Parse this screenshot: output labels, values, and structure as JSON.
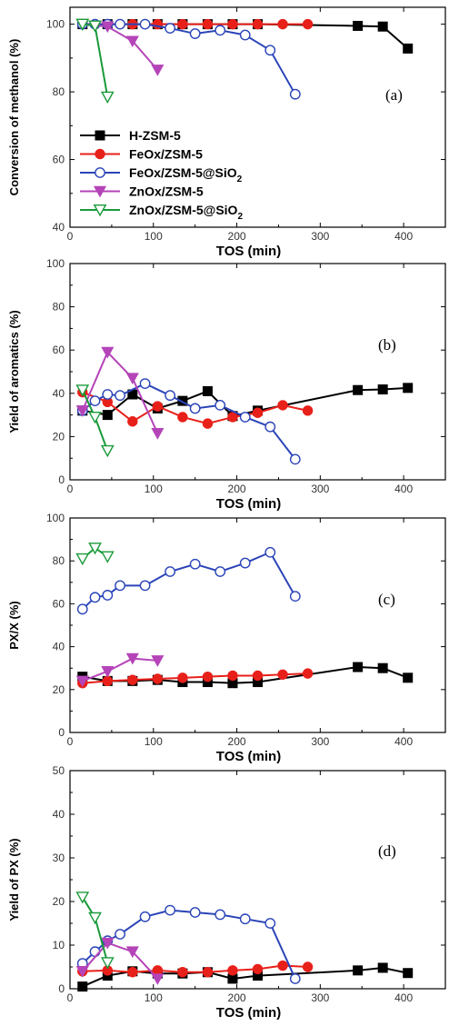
{
  "chart_data": [
    {
      "type": "line",
      "panel": "(a)",
      "xlabel": "TOS (min)",
      "ylabel": "Conversion of methanol (%)",
      "xlim": [
        0,
        450
      ],
      "ylim": [
        40,
        105
      ],
      "xticks": [
        0,
        100,
        200,
        300,
        400
      ],
      "yticks": [
        40,
        60,
        80,
        100
      ],
      "legend": {
        "placement": "lower-left",
        "entries": [
          "H-ZSM-5",
          "FeOx/ZSM-5",
          "FeOx/ZSM-5@SiO",
          "ZnOx/ZSM-5",
          "ZnOx/ZSM-5@SiO"
        ],
        "subscripts": [
          "",
          "",
          "2",
          "",
          "2"
        ]
      },
      "series": [
        {
          "name": "H-ZSM-5",
          "color": "#000000",
          "marker": "square-filled",
          "x": [
            15,
            45,
            75,
            105,
            135,
            165,
            195,
            225,
            345,
            375,
            405
          ],
          "y": [
            100,
            100,
            100,
            100,
            100,
            100,
            100,
            100,
            99.5,
            99.3,
            92.8
          ]
        },
        {
          "name": "FeOx/ZSM-5",
          "color": "#e8201a",
          "marker": "circle-filled",
          "x": [
            15,
            45,
            75,
            105,
            135,
            165,
            195,
            225,
            255,
            285
          ],
          "y": [
            100,
            100,
            100,
            100,
            100,
            100,
            100,
            100,
            100,
            100
          ]
        },
        {
          "name": "FeOx/ZSM-5@SiO2",
          "color": "#2b44b8",
          "marker": "circle-open",
          "x": [
            15,
            30,
            45,
            60,
            90,
            120,
            150,
            180,
            210,
            240,
            270
          ],
          "y": [
            100,
            100,
            100,
            100,
            100,
            98.8,
            97.2,
            98.2,
            96.8,
            92.3,
            79.3
          ]
        },
        {
          "name": "ZnOx/ZSM-5",
          "color": "#b444b8",
          "marker": "triangle-down-filled",
          "x": [
            15,
            45,
            75,
            105
          ],
          "y": [
            100,
            99.3,
            95,
            86.5
          ]
        },
        {
          "name": "ZnOx/ZSM-5@SiO2",
          "color": "#1a9a3a",
          "marker": "triangle-down-open",
          "x": [
            15,
            30,
            45
          ],
          "y": [
            100,
            99.5,
            78.5
          ]
        }
      ]
    },
    {
      "type": "line",
      "panel": "(b)",
      "xlabel": "TOS (min)",
      "ylabel": "Yield of aromatics (%)",
      "xlim": [
        0,
        450
      ],
      "ylim": [
        0,
        100
      ],
      "xticks": [
        0,
        100,
        200,
        300,
        400
      ],
      "yticks": [
        0,
        20,
        40,
        60,
        80,
        100
      ],
      "series": [
        {
          "name": "H-ZSM-5",
          "color": "#000000",
          "marker": "square-filled",
          "x": [
            15,
            45,
            75,
            105,
            135,
            165,
            195,
            225,
            345,
            375,
            405
          ],
          "y": [
            32,
            30,
            39.5,
            33,
            36.5,
            41,
            29.5,
            32,
            41.5,
            41.8,
            42.5
          ]
        },
        {
          "name": "FeOx/ZSM-5",
          "color": "#e8201a",
          "marker": "circle-filled",
          "x": [
            15,
            45,
            75,
            105,
            135,
            165,
            195,
            225,
            255,
            285
          ],
          "y": [
            40.5,
            36,
            27,
            34,
            29,
            26,
            29,
            31,
            34.5,
            32
          ]
        },
        {
          "name": "FeOx/ZSM-5@SiO2",
          "color": "#2b44b8",
          "marker": "circle-open",
          "x": [
            15,
            30,
            45,
            60,
            90,
            120,
            150,
            180,
            210,
            240,
            270
          ],
          "y": [
            32,
            36.5,
            39.5,
            39,
            44.5,
            39,
            33,
            34.5,
            29,
            24.5,
            9.5
          ]
        },
        {
          "name": "ZnOx/ZSM-5",
          "color": "#b444b8",
          "marker": "triangle-down-filled",
          "x": [
            15,
            45,
            75,
            105
          ],
          "y": [
            32,
            59,
            47,
            21.5
          ]
        },
        {
          "name": "ZnOx/ZSM-5@SiO2",
          "color": "#1a9a3a",
          "marker": "triangle-down-open",
          "x": [
            15,
            30,
            45
          ],
          "y": [
            41.5,
            29,
            13.5
          ]
        }
      ]
    },
    {
      "type": "line",
      "panel": "(c)",
      "xlabel": "TOS (min)",
      "ylabel": "PX/X (%)",
      "xlim": [
        0,
        450
      ],
      "ylim": [
        0,
        100
      ],
      "xticks": [
        0,
        100,
        200,
        300,
        400
      ],
      "yticks": [
        0,
        20,
        40,
        60,
        80,
        100
      ],
      "series": [
        {
          "name": "H-ZSM-5",
          "color": "#000000",
          "marker": "square-filled",
          "x": [
            15,
            45,
            75,
            105,
            135,
            165,
            195,
            225,
            345,
            375,
            405
          ],
          "y": [
            26,
            24,
            24,
            24.5,
            23.5,
            23.5,
            23,
            23.5,
            30.5,
            30,
            25.5
          ]
        },
        {
          "name": "FeOx/ZSM-5",
          "color": "#e8201a",
          "marker": "circle-filled",
          "x": [
            15,
            45,
            75,
            105,
            135,
            165,
            195,
            225,
            255,
            285
          ],
          "y": [
            23,
            24,
            24.5,
            25,
            25.5,
            26,
            26.5,
            26.5,
            27,
            27.5
          ]
        },
        {
          "name": "FeOx/ZSM-5@SiO2",
          "color": "#2b44b8",
          "marker": "circle-open",
          "x": [
            15,
            30,
            45,
            60,
            90,
            120,
            150,
            180,
            210,
            240,
            270
          ],
          "y": [
            57.5,
            63,
            64,
            68.5,
            68.5,
            75,
            78.5,
            75,
            79,
            84,
            63.5
          ]
        },
        {
          "name": "ZnOx/ZSM-5",
          "color": "#b444b8",
          "marker": "triangle-down-filled",
          "x": [
            15,
            45,
            75,
            105
          ],
          "y": [
            24,
            28.5,
            34.5,
            33.5
          ]
        },
        {
          "name": "ZnOx/ZSM-5@SiO2",
          "color": "#1a9a3a",
          "marker": "triangle-down-open",
          "x": [
            15,
            30,
            45
          ],
          "y": [
            81,
            86,
            82
          ]
        }
      ]
    },
    {
      "type": "line",
      "panel": "(d)",
      "xlabel": "TOS (min)",
      "ylabel": "Yield of PX (%)",
      "xlim": [
        0,
        450
      ],
      "ylim": [
        0,
        50
      ],
      "xticks": [
        0,
        100,
        200,
        300,
        400
      ],
      "yticks": [
        0,
        10,
        20,
        30,
        40,
        50
      ],
      "series": [
        {
          "name": "H-ZSM-5",
          "color": "#000000",
          "marker": "square-filled",
          "x": [
            15,
            45,
            75,
            105,
            135,
            165,
            195,
            225,
            345,
            375,
            405
          ],
          "y": [
            0.5,
            3,
            4,
            3.5,
            3.5,
            3.8,
            2.3,
            3,
            4.2,
            4.8,
            3.6
          ]
        },
        {
          "name": "FeOx/ZSM-5",
          "color": "#e8201a",
          "marker": "circle-filled",
          "x": [
            15,
            45,
            75,
            105,
            135,
            165,
            195,
            225,
            255,
            285
          ],
          "y": [
            4,
            4.2,
            3.8,
            4.2,
            3.8,
            3.8,
            4.2,
            4.5,
            5.3,
            5
          ]
        },
        {
          "name": "FeOx/ZSM-5@SiO2",
          "color": "#2b44b8",
          "marker": "circle-open",
          "x": [
            15,
            30,
            45,
            60,
            90,
            120,
            150,
            180,
            210,
            240,
            270
          ],
          "y": [
            5.8,
            8.5,
            11,
            12.5,
            16.5,
            18,
            17.5,
            17,
            16,
            15,
            2.3
          ]
        },
        {
          "name": "ZnOx/ZSM-5",
          "color": "#b444b8",
          "marker": "triangle-down-filled",
          "x": [
            15,
            45,
            75,
            105
          ],
          "y": [
            4,
            10.5,
            8.5,
            2.3
          ]
        },
        {
          "name": "ZnOx/ZSM-5@SiO2",
          "color": "#1a9a3a",
          "marker": "triangle-down-open",
          "x": [
            15,
            30,
            45
          ],
          "y": [
            21,
            16.3,
            6
          ]
        }
      ]
    }
  ]
}
